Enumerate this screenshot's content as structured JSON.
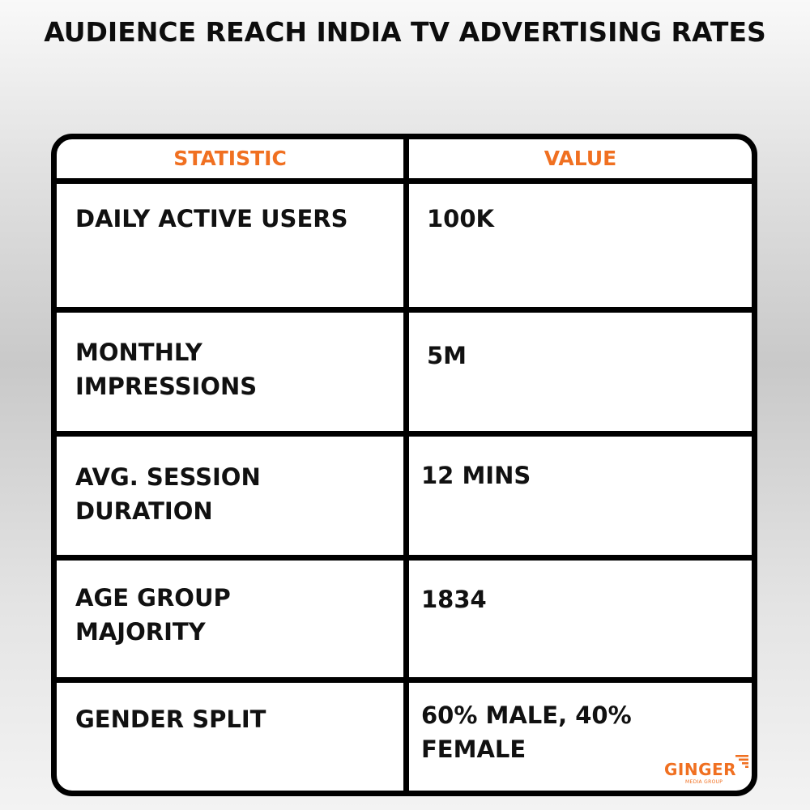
{
  "title": "AUDIENCE REACH INDIA TV ADVERTISING RATES",
  "table": {
    "headers": [
      "STATISTIC",
      "VALUE"
    ],
    "rows": [
      {
        "statistic": "DAILY ACTIVE USERS",
        "value": "100K"
      },
      {
        "statistic": "MONTHLY\nIMPRESSIONS",
        "value": "5M"
      },
      {
        "statistic": "AVG. SESSION\nDURATION",
        "value": "12 MINS"
      },
      {
        "statistic": "AGE GROUP\nMAJORITY",
        "value": "1834"
      },
      {
        "statistic": "GENDER SPLIT",
        "value": "60% MALE, 40%\nFEMALE"
      }
    ]
  },
  "logo": {
    "name": "GINGER",
    "tagline": "MEDIA GROUP"
  },
  "colors": {
    "accent": "#f07021",
    "text": "#111111",
    "border": "#000000"
  }
}
